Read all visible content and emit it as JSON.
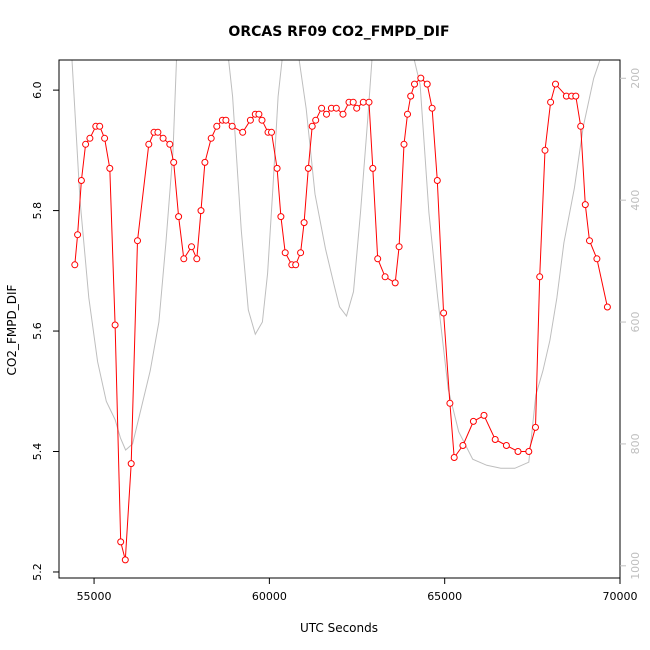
{
  "chart_data": {
    "type": "line",
    "title": "ORCAS RF09 CO2_FMPD_DIF",
    "xlabel": "UTC Seconds",
    "ylabel": "CO2_FMPD_DIF",
    "xlim": [
      54000,
      70000
    ],
    "ylim": [
      5.19,
      6.05
    ],
    "x_ticks": [
      55000,
      60000,
      65000,
      70000
    ],
    "y_ticks": [
      5.2,
      5.4,
      5.6,
      5.8,
      6.0
    ],
    "y_tick_labels": [
      "5.2",
      "5.4",
      "5.6",
      "5.8",
      "6.0"
    ],
    "y2lim": [
      1020,
      170
    ],
    "y2_ticks": [
      200,
      400,
      600,
      800,
      1000
    ],
    "colors": {
      "primary": "#ff0000",
      "secondary": "#bebebe",
      "axis": "#000000",
      "axis_right": "#bfbfbf"
    },
    "series": [
      {
        "role": "primary",
        "markers": "open-circle",
        "x": [
          54450,
          54530,
          54640,
          54760,
          54880,
          55050,
          55160,
          55300,
          55450,
          55600,
          55760,
          55890,
          56060,
          56240,
          56560,
          56710,
          56820,
          56970,
          57160,
          57270,
          57410,
          57560,
          57780,
          57930,
          58050,
          58160,
          58340,
          58500,
          58660,
          58760,
          58940,
          59240,
          59460,
          59600,
          59700,
          59790,
          59960,
          60060,
          60220,
          60330,
          60450,
          60640,
          60750,
          60890,
          60990,
          61110,
          61220,
          61320,
          61490,
          61630,
          61770,
          61910,
          62100,
          62270,
          62390,
          62490,
          62680,
          62840,
          62950,
          63090,
          63300,
          63590,
          63700,
          63840,
          63940,
          64030,
          64140,
          64320,
          64500,
          64640,
          64790,
          64970,
          65150,
          65270,
          65520,
          65820,
          66120,
          66440,
          66760,
          67090,
          67400,
          67590,
          67710,
          67860,
          68020,
          68160,
          68470,
          68620,
          68740,
          68880,
          69010,
          69130,
          69340,
          69640
        ],
        "y": [
          5.71,
          5.76,
          5.85,
          5.91,
          5.92,
          5.94,
          5.94,
          5.92,
          5.87,
          5.61,
          5.25,
          5.22,
          5.38,
          5.75,
          5.91,
          5.93,
          5.93,
          5.92,
          5.91,
          5.88,
          5.79,
          5.72,
          5.74,
          5.72,
          5.8,
          5.88,
          5.92,
          5.94,
          5.95,
          5.95,
          5.94,
          5.93,
          5.95,
          5.96,
          5.96,
          5.95,
          5.93,
          5.93,
          5.87,
          5.79,
          5.73,
          5.71,
          5.71,
          5.73,
          5.78,
          5.87,
          5.94,
          5.95,
          5.97,
          5.96,
          5.97,
          5.97,
          5.96,
          5.98,
          5.98,
          5.97,
          5.98,
          5.98,
          5.87,
          5.72,
          5.69,
          5.68,
          5.74,
          5.91,
          5.96,
          5.99,
          6.01,
          6.02,
          6.01,
          5.97,
          5.85,
          5.63,
          5.48,
          5.39,
          5.41,
          5.45,
          5.46,
          5.42,
          5.41,
          5.4,
          5.4,
          5.44,
          5.69,
          5.9,
          5.98,
          6.01,
          5.99,
          5.99,
          5.99,
          5.94,
          5.81,
          5.75,
          5.72,
          5.64
        ]
      },
      {
        "role": "secondary",
        "axis": "right",
        "x": [
          54350,
          54600,
          54850,
          55100,
          55350,
          55600,
          55750,
          55900,
          56100,
          56350,
          56600,
          56850,
          57050,
          57250,
          57350,
          57500,
          57650,
          57850,
          58050,
          58300,
          58550,
          58800,
          58950,
          59200,
          59400,
          59600,
          59800,
          59950,
          60100,
          60250,
          60400,
          60600,
          60800,
          61050,
          61300,
          61600,
          61850,
          62000,
          62200,
          62400,
          62600,
          62800,
          62950,
          63150,
          63350,
          63550,
          63800,
          64050,
          64300,
          64550,
          64800,
          65100,
          65400,
          65800,
          66200,
          66600,
          67000,
          67400,
          67600,
          67800,
          68000,
          68200,
          68400,
          68700,
          68950,
          69250,
          69550
        ],
        "y": [
          150,
          400,
          560,
          665,
          730,
          760,
          790,
          810,
          800,
          740,
          680,
          600,
          470,
          320,
          170,
          150,
          150,
          150,
          150,
          150,
          150,
          150,
          230,
          450,
          580,
          620,
          600,
          520,
          380,
          230,
          150,
          150,
          150,
          250,
          390,
          480,
          540,
          575,
          590,
          550,
          420,
          270,
          150,
          150,
          150,
          150,
          150,
          150,
          210,
          420,
          560,
          710,
          780,
          825,
          835,
          840,
          840,
          830,
          720,
          680,
          630,
          560,
          470,
          380,
          280,
          200,
          150
        ]
      }
    ]
  }
}
